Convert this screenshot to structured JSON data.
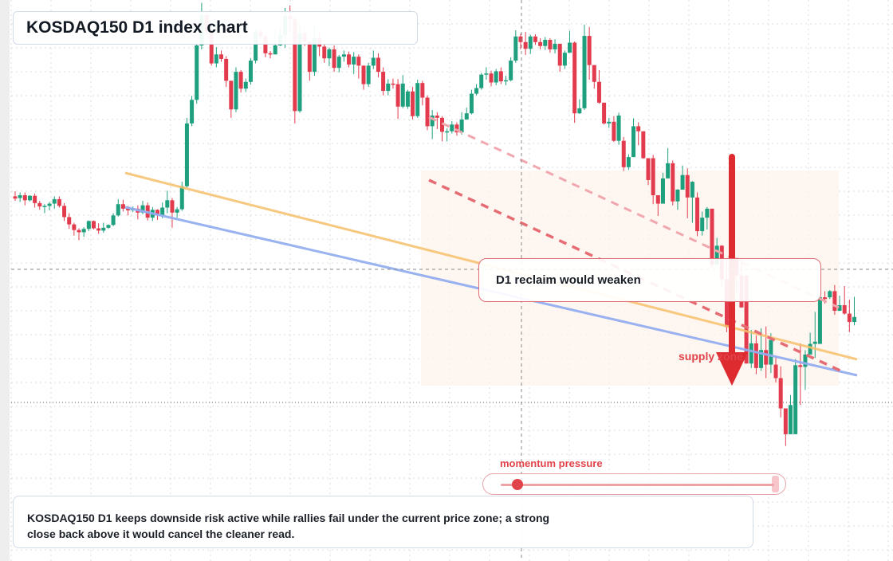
{
  "title": "KOSDAQ150 D1 index chart",
  "callout": "D1 reclaim would weaken",
  "zone_label": "supply zone",
  "meter": {
    "label": "momentum pressure",
    "level": 0.06
  },
  "summary": "KOSDAQ150 D1 keeps downside risk active while rallies fail under the current price zone; a strong close back above it would cancel the cleaner read.",
  "colors": {
    "up": "#1ea07e",
    "down": "#e23b4e",
    "resistance": "#f6c06b",
    "support": "#94aef0",
    "channel": "#e66c74",
    "arrow": "#dd2b30"
  },
  "chart_data": {
    "type": "candlestick",
    "timeframe": "D1",
    "y_range": [
      0,
      1000
    ],
    "candles": [
      [
        0,
        650,
        646,
        659,
        642
      ],
      [
        1,
        647,
        652,
        657,
        640
      ],
      [
        2,
        652,
        643,
        657,
        634
      ],
      [
        3,
        643,
        651,
        652,
        641
      ],
      [
        4,
        651,
        638,
        655,
        630
      ],
      [
        5,
        638,
        632,
        642,
        626
      ],
      [
        6,
        632,
        633,
        636,
        620
      ],
      [
        7,
        633,
        637,
        640,
        625
      ],
      [
        8,
        637,
        645,
        650,
        628
      ],
      [
        9,
        645,
        633,
        650,
        630
      ],
      [
        10,
        633,
        613,
        638,
        606
      ],
      [
        11,
        613,
        600,
        620,
        592
      ],
      [
        12,
        600,
        590,
        603,
        580
      ],
      [
        13,
        590,
        586,
        593,
        572
      ],
      [
        14,
        586,
        592,
        595,
        578
      ],
      [
        15,
        592,
        606,
        607,
        588
      ],
      [
        16,
        606,
        593,
        607,
        591
      ],
      [
        17,
        593,
        589,
        602,
        583
      ],
      [
        18,
        589,
        594,
        603,
        585
      ],
      [
        19,
        594,
        599,
        600,
        592
      ],
      [
        20,
        599,
        616,
        620,
        597
      ],
      [
        21,
        616,
        636,
        645,
        614
      ],
      [
        22,
        636,
        628,
        644,
        623
      ],
      [
        23,
        628,
        625,
        633,
        616
      ],
      [
        24,
        625,
        628,
        632,
        622
      ],
      [
        25,
        628,
        621,
        634,
        609
      ],
      [
        26,
        621,
        634,
        642,
        618
      ],
      [
        27,
        634,
        612,
        639,
        607
      ],
      [
        28,
        612,
        626,
        631,
        606
      ],
      [
        29,
        626,
        616,
        627,
        608
      ],
      [
        30,
        616,
        630,
        639,
        611
      ],
      [
        31,
        630,
        643,
        660,
        620
      ],
      [
        32,
        643,
        621,
        647,
        594
      ],
      [
        33,
        621,
        627,
        631,
        612
      ],
      [
        34,
        627,
        668,
        676,
        624
      ],
      [
        35,
        668,
        780,
        790,
        665
      ],
      [
        36,
        780,
        822,
        829,
        775
      ],
      [
        37,
        822,
        919,
        930,
        815
      ],
      [
        38,
        919,
        973,
        995,
        912
      ],
      [
        39,
        973,
        944,
        968,
        938
      ],
      [
        40,
        944,
        887,
        952,
        883
      ],
      [
        41,
        887,
        903,
        916,
        880
      ],
      [
        42,
        903,
        895,
        910,
        890
      ],
      [
        43,
        895,
        856,
        900,
        845
      ],
      [
        44,
        856,
        805,
        828,
        790
      ],
      [
        45,
        805,
        872,
        880,
        800
      ],
      [
        46,
        872,
        842,
        875,
        835
      ],
      [
        47,
        842,
        854,
        860,
        836
      ],
      [
        48,
        854,
        892,
        896,
        849
      ],
      [
        49,
        892,
        944,
        947,
        887
      ],
      [
        50,
        944,
        935,
        948,
        930
      ],
      [
        51,
        935,
        905,
        940,
        898
      ],
      [
        52,
        905,
        903,
        909,
        896
      ],
      [
        53,
        903,
        919,
        948,
        904
      ],
      [
        54,
        919,
        938,
        950,
        918
      ],
      [
        55,
        938,
        971,
        986,
        915
      ],
      [
        56,
        971,
        965,
        990,
        942
      ],
      [
        57,
        965,
        802,
        970,
        780
      ],
      [
        58,
        802,
        941,
        960,
        799
      ],
      [
        59,
        941,
        926,
        946,
        918
      ],
      [
        60,
        926,
        872,
        890,
        856
      ],
      [
        61,
        872,
        932,
        955,
        865
      ],
      [
        62,
        932,
        917,
        943,
        900
      ],
      [
        63,
        917,
        896,
        922,
        888
      ],
      [
        64,
        896,
        912,
        915,
        882
      ],
      [
        65,
        912,
        879,
        919,
        872
      ],
      [
        66,
        879,
        899,
        902,
        871
      ],
      [
        67,
        899,
        903,
        910,
        890
      ],
      [
        68,
        903,
        885,
        908,
        880
      ],
      [
        69,
        885,
        899,
        907,
        868
      ],
      [
        70,
        899,
        883,
        903,
        860
      ],
      [
        71,
        883,
        850,
        882,
        840
      ],
      [
        72,
        850,
        883,
        888,
        845
      ],
      [
        73,
        883,
        897,
        910,
        877
      ],
      [
        74,
        897,
        872,
        905,
        862
      ],
      [
        75,
        872,
        838,
        880,
        830
      ],
      [
        76,
        838,
        851,
        859,
        830
      ],
      [
        77,
        851,
        850,
        860,
        842
      ],
      [
        78,
        850,
        810,
        859,
        788
      ],
      [
        79,
        810,
        851,
        866,
        807
      ],
      [
        80,
        810,
        837,
        840,
        806
      ],
      [
        81,
        837,
        793,
        845,
        787
      ],
      [
        82,
        793,
        852,
        858,
        790
      ],
      [
        83,
        852,
        826,
        856,
        812
      ],
      [
        84,
        826,
        775,
        830,
        768
      ],
      [
        85,
        775,
        794,
        804,
        752
      ],
      [
        86,
        794,
        790,
        800,
        770
      ],
      [
        87,
        790,
        765,
        793,
        748
      ],
      [
        88,
        765,
        766,
        771,
        748
      ],
      [
        89,
        766,
        778,
        784,
        762
      ],
      [
        90,
        778,
        764,
        782,
        758
      ],
      [
        91,
        764,
        787,
        800,
        760
      ],
      [
        92,
        787,
        798,
        808,
        790
      ],
      [
        93,
        798,
        833,
        840,
        796
      ],
      [
        94,
        833,
        843,
        850,
        830
      ],
      [
        95,
        843,
        867,
        870,
        840
      ],
      [
        96,
        867,
        869,
        880,
        858
      ],
      [
        97,
        869,
        853,
        874,
        846
      ],
      [
        98,
        853,
        873,
        877,
        848
      ],
      [
        99,
        873,
        855,
        880,
        850
      ],
      [
        100,
        855,
        857,
        865,
        848
      ],
      [
        101,
        857,
        892,
        898,
        855
      ],
      [
        102,
        892,
        935,
        946,
        888
      ],
      [
        103,
        935,
        925,
        940,
        912
      ],
      [
        104,
        925,
        913,
        943,
        902
      ],
      [
        105,
        913,
        935,
        938,
        904
      ],
      [
        106,
        935,
        925,
        939,
        920
      ],
      [
        107,
        925,
        918,
        932,
        912
      ],
      [
        108,
        918,
        929,
        934,
        911
      ],
      [
        109,
        929,
        912,
        932,
        906
      ],
      [
        110,
        912,
        922,
        930,
        905
      ],
      [
        111,
        922,
        883,
        920,
        872
      ],
      [
        112,
        883,
        906,
        910,
        877
      ],
      [
        113,
        906,
        924,
        945,
        918
      ],
      [
        114,
        924,
        798,
        926,
        781
      ],
      [
        115,
        798,
        807,
        823,
        797
      ],
      [
        116,
        807,
        936,
        956,
        804
      ],
      [
        117,
        936,
        884,
        952,
        858
      ],
      [
        118,
        884,
        854,
        869,
        842
      ],
      [
        119,
        854,
        817,
        875,
        815
      ],
      [
        120,
        817,
        780,
        793,
        778
      ],
      [
        121,
        780,
        783,
        790,
        772
      ],
      [
        122,
        783,
        749,
        793,
        747
      ],
      [
        123,
        749,
        794,
        799,
        742
      ],
      [
        124,
        749,
        702,
        756,
        695
      ],
      [
        125,
        702,
        720,
        725,
        697
      ],
      [
        126,
        720,
        775,
        789,
        725
      ],
      [
        127,
        775,
        766,
        782,
        741
      ],
      [
        128,
        766,
        718,
        759,
        717
      ],
      [
        129,
        718,
        679,
        702,
        670
      ],
      [
        130,
        718,
        652,
        724,
        636
      ],
      [
        131,
        652,
        637,
        651,
        615
      ],
      [
        132,
        637,
        682,
        692,
        642
      ],
      [
        133,
        682,
        709,
        736,
        695
      ],
      [
        134,
        709,
        641,
        714,
        634
      ],
      [
        135,
        641,
        662,
        663,
        626
      ],
      [
        136,
        662,
        688,
        705,
        680
      ],
      [
        137,
        688,
        648,
        700,
        611
      ],
      [
        138,
        648,
        676,
        677,
        603
      ],
      [
        139,
        648,
        588,
        657,
        579
      ],
      [
        140,
        588,
        612,
        623,
        580
      ],
      [
        141,
        612,
        628,
        631,
        591
      ],
      [
        142,
        628,
        528,
        612,
        522
      ],
      [
        143,
        528,
        562,
        576,
        558
      ],
      [
        144,
        562,
        502,
        563,
        489
      ],
      [
        145,
        502,
        417,
        539,
        408
      ],
      [
        146,
        417,
        540,
        515,
        397
      ],
      [
        147,
        540,
        509,
        506,
        478
      ],
      [
        148,
        509,
        452,
        538,
        477
      ],
      [
        149,
        509,
        352,
        485,
        380
      ],
      [
        150,
        352,
        388,
        412,
        344
      ],
      [
        151,
        388,
        344,
        402,
        333
      ],
      [
        152,
        344,
        376,
        415,
        339
      ],
      [
        153,
        376,
        350,
        418,
        326
      ],
      [
        154,
        350,
        394,
        406,
        335
      ],
      [
        155,
        350,
        326,
        364,
        318
      ],
      [
        156,
        326,
        272,
        347,
        256
      ],
      [
        157,
        272,
        226,
        260,
        205
      ],
      [
        158,
        226,
        278,
        296,
        228
      ],
      [
        159,
        226,
        349,
        360,
        310
      ],
      [
        160,
        349,
        346,
        388,
        278
      ],
      [
        161,
        346,
        368,
        376,
        305
      ],
      [
        162,
        368,
        387,
        407,
        383
      ],
      [
        163,
        387,
        391,
        444,
        362
      ],
      [
        164,
        387,
        470,
        466,
        422
      ],
      [
        165,
        470,
        467,
        481,
        459
      ],
      [
        166,
        470,
        481,
        483,
        467
      ],
      [
        167,
        481,
        446,
        492,
        439
      ],
      [
        168,
        446,
        456,
        473,
        450
      ],
      [
        169,
        456,
        441,
        490,
        439
      ],
      [
        170,
        441,
        426,
        466,
        408
      ],
      [
        171,
        426,
        435,
        471,
        420
      ]
    ]
  }
}
